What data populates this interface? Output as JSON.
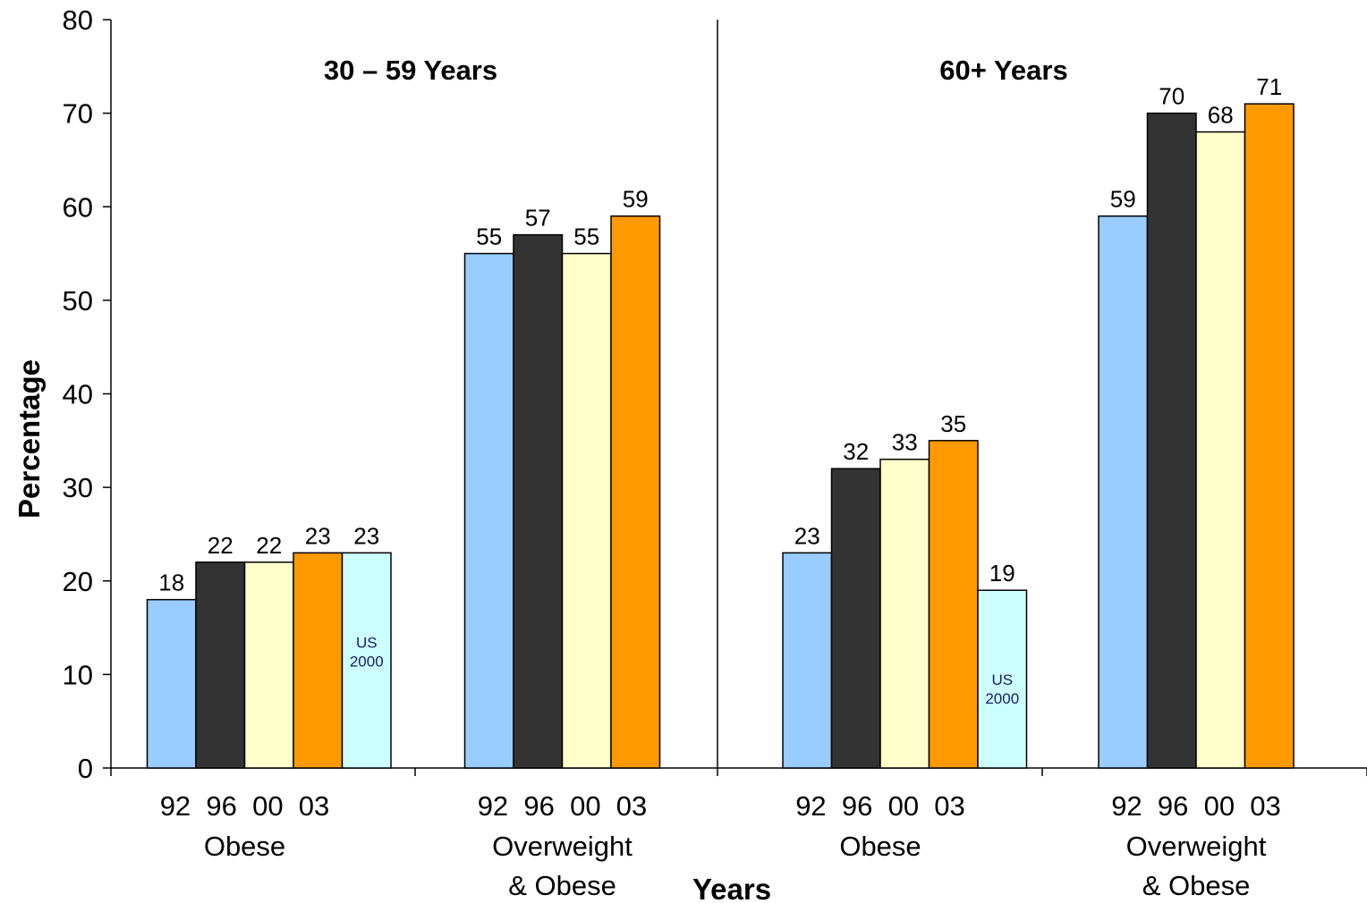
{
  "chart_data": {
    "type": "bar",
    "ylabel": "Percentage",
    "xlabel": "Years",
    "ylim": [
      0,
      80
    ],
    "yticks": [
      "0",
      "10",
      "20",
      "30",
      "40",
      "50",
      "60",
      "70",
      "80"
    ],
    "colors": {
      "92": "#99ccff",
      "96": "#333333",
      "00": "#ffffcc",
      "03": "#ff9900",
      "US 2000": "#ccffff"
    },
    "panels": [
      {
        "title": "30 – 59 Years",
        "groups": [
          {
            "label_lines": [
              "Obese"
            ],
            "years_label": "92  96  00  03",
            "bars": [
              {
                "year": "92",
                "value": 18
              },
              {
                "year": "96",
                "value": 22
              },
              {
                "year": "00",
                "value": 22
              },
              {
                "year": "03",
                "value": 23
              },
              {
                "year": "US 2000",
                "value": 23,
                "note_lines": [
                  "US",
                  "2000"
                ]
              }
            ]
          },
          {
            "label_lines": [
              "Overweight",
              "& Obese"
            ],
            "years_label": "92  96  00  03",
            "bars": [
              {
                "year": "92",
                "value": 55
              },
              {
                "year": "96",
                "value": 57
              },
              {
                "year": "00",
                "value": 55
              },
              {
                "year": "03",
                "value": 59
              }
            ]
          }
        ]
      },
      {
        "title": "60+ Years",
        "groups": [
          {
            "label_lines": [
              "Obese"
            ],
            "years_label": "92  96  00  03",
            "bars": [
              {
                "year": "92",
                "value": 23
              },
              {
                "year": "96",
                "value": 32
              },
              {
                "year": "00",
                "value": 33
              },
              {
                "year": "03",
                "value": 35
              },
              {
                "year": "US 2000",
                "value": 19,
                "note_lines": [
                  "US",
                  "2000"
                ]
              }
            ]
          },
          {
            "label_lines": [
              "Overweight",
              "& Obese"
            ],
            "years_label": "92  96  00  03",
            "bars": [
              {
                "year": "92",
                "value": 59
              },
              {
                "year": "96",
                "value": 70
              },
              {
                "year": "00",
                "value": 68
              },
              {
                "year": "03",
                "value": 71
              }
            ]
          }
        ]
      }
    ]
  }
}
